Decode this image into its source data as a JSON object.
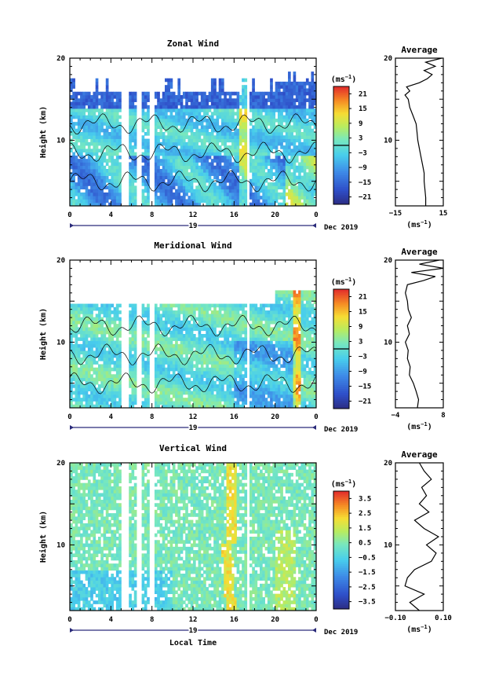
{
  "chart_data": [
    {
      "type": "heatmap",
      "title": "Zonal Wind",
      "ylabel": "Height (km)",
      "y_ticks": [
        "20",
        "10"
      ],
      "ylim": [
        2,
        20
      ],
      "x_ticks": [
        "0",
        "4",
        "8",
        "12",
        "16",
        "20",
        "0"
      ],
      "xlim": [
        0,
        24
      ],
      "date_day": "19",
      "date_label": "Dec 2019",
      "colorbar": {
        "unit": "(ms",
        "unit_exp": "−1",
        "unit_close": ")",
        "ticks": [
          "21",
          "15",
          "9",
          "3",
          "−3",
          "−9",
          "−15",
          "−21"
        ],
        "range": [
          -24,
          24
        ]
      },
      "profile": {
        "title": "Average",
        "y_ticks": [
          "20",
          "10"
        ],
        "x_ticks": [
          "−15",
          "15"
        ],
        "xlim": [
          -15,
          15
        ],
        "xlabel": "(ms",
        "xlabel_exp": "−1",
        "xlabel_close": ")",
        "heights": [
          2,
          3,
          4,
          5,
          6,
          7,
          8,
          9,
          10,
          11,
          12,
          13,
          14,
          15,
          15.5,
          16,
          16.5,
          17,
          17.5,
          18,
          18.5,
          19,
          19.5,
          20
        ],
        "values": [
          4,
          4,
          3.5,
          3,
          3,
          2,
          1,
          0,
          -1,
          -1.5,
          -2,
          -4,
          -6,
          -7,
          -9,
          -6,
          -8,
          0,
          5,
          8,
          3,
          10,
          4,
          14
        ]
      }
    },
    {
      "type": "heatmap",
      "title": "Meridional Wind",
      "ylabel": "Height (km)",
      "y_ticks": [
        "20",
        "10"
      ],
      "ylim": [
        2,
        20
      ],
      "x_ticks": [
        "0",
        "4",
        "8",
        "12",
        "16",
        "20",
        "0"
      ],
      "xlim": [
        0,
        24
      ],
      "date_day": "19",
      "date_label": "Dec 2019",
      "colorbar": {
        "unit": "(ms",
        "unit_exp": "−1",
        "unit_close": ")",
        "ticks": [
          "21",
          "15",
          "9",
          "3",
          "−3",
          "−9",
          "−15",
          "−21"
        ],
        "range": [
          -24,
          24
        ]
      },
      "profile": {
        "title": "Average",
        "y_ticks": [
          "20",
          "10"
        ],
        "x_ticks": [
          "−4",
          "8"
        ],
        "xlim": [
          -4,
          8
        ],
        "xlabel": "(ms",
        "xlabel_exp": "−1",
        "xlabel_close": ")",
        "heights": [
          2,
          3,
          4,
          5,
          6,
          7,
          8,
          9,
          10,
          11,
          12,
          13,
          14,
          15,
          16,
          17,
          17.5,
          18,
          18.5,
          19,
          19.5,
          20
        ],
        "values": [
          1.5,
          1.8,
          1.2,
          0.5,
          -0.5,
          -0.3,
          -1,
          -0.8,
          -1.5,
          -0.5,
          -1,
          0,
          -0.8,
          -1,
          -1.5,
          -1,
          3,
          6,
          0,
          8,
          2,
          7
        ]
      }
    },
    {
      "type": "heatmap",
      "title": "Vertical Wind",
      "ylabel": "Height (km)",
      "y_ticks": [
        "20",
        "10"
      ],
      "ylim": [
        2,
        20
      ],
      "x_ticks": [
        "0",
        "4",
        "8",
        "12",
        "16",
        "20",
        "0"
      ],
      "xlim": [
        0,
        24
      ],
      "date_day": "19",
      "date_label": "Dec 2019",
      "xlabel": "Local Time",
      "colorbar": {
        "unit": "(ms",
        "unit_exp": "−1",
        "unit_close": ")",
        "ticks": [
          "3.5",
          "2.5",
          "1.5",
          "0.5",
          "−0.5",
          "−1.5",
          "−2.5",
          "−3.5"
        ],
        "range": [
          -4,
          4
        ]
      },
      "profile": {
        "title": "Average",
        "y_ticks": [
          "20",
          "10"
        ],
        "x_ticks": [
          "−0.10",
          "0.10"
        ],
        "xlim": [
          -0.1,
          0.1
        ],
        "xlabel": "(ms",
        "xlabel_exp": "−1",
        "xlabel_close": ")",
        "heights": [
          2,
          3,
          4,
          5,
          6,
          7,
          8,
          9,
          10,
          11,
          12,
          13,
          14,
          15,
          16,
          17,
          18,
          19,
          20
        ],
        "values": [
          0.0,
          -0.04,
          0.02,
          -0.06,
          -0.05,
          -0.02,
          0.05,
          0.07,
          0.03,
          0.08,
          0.02,
          -0.02,
          0.04,
          0.0,
          0.03,
          0.01,
          0.05,
          0.02,
          0.0
        ]
      }
    }
  ]
}
